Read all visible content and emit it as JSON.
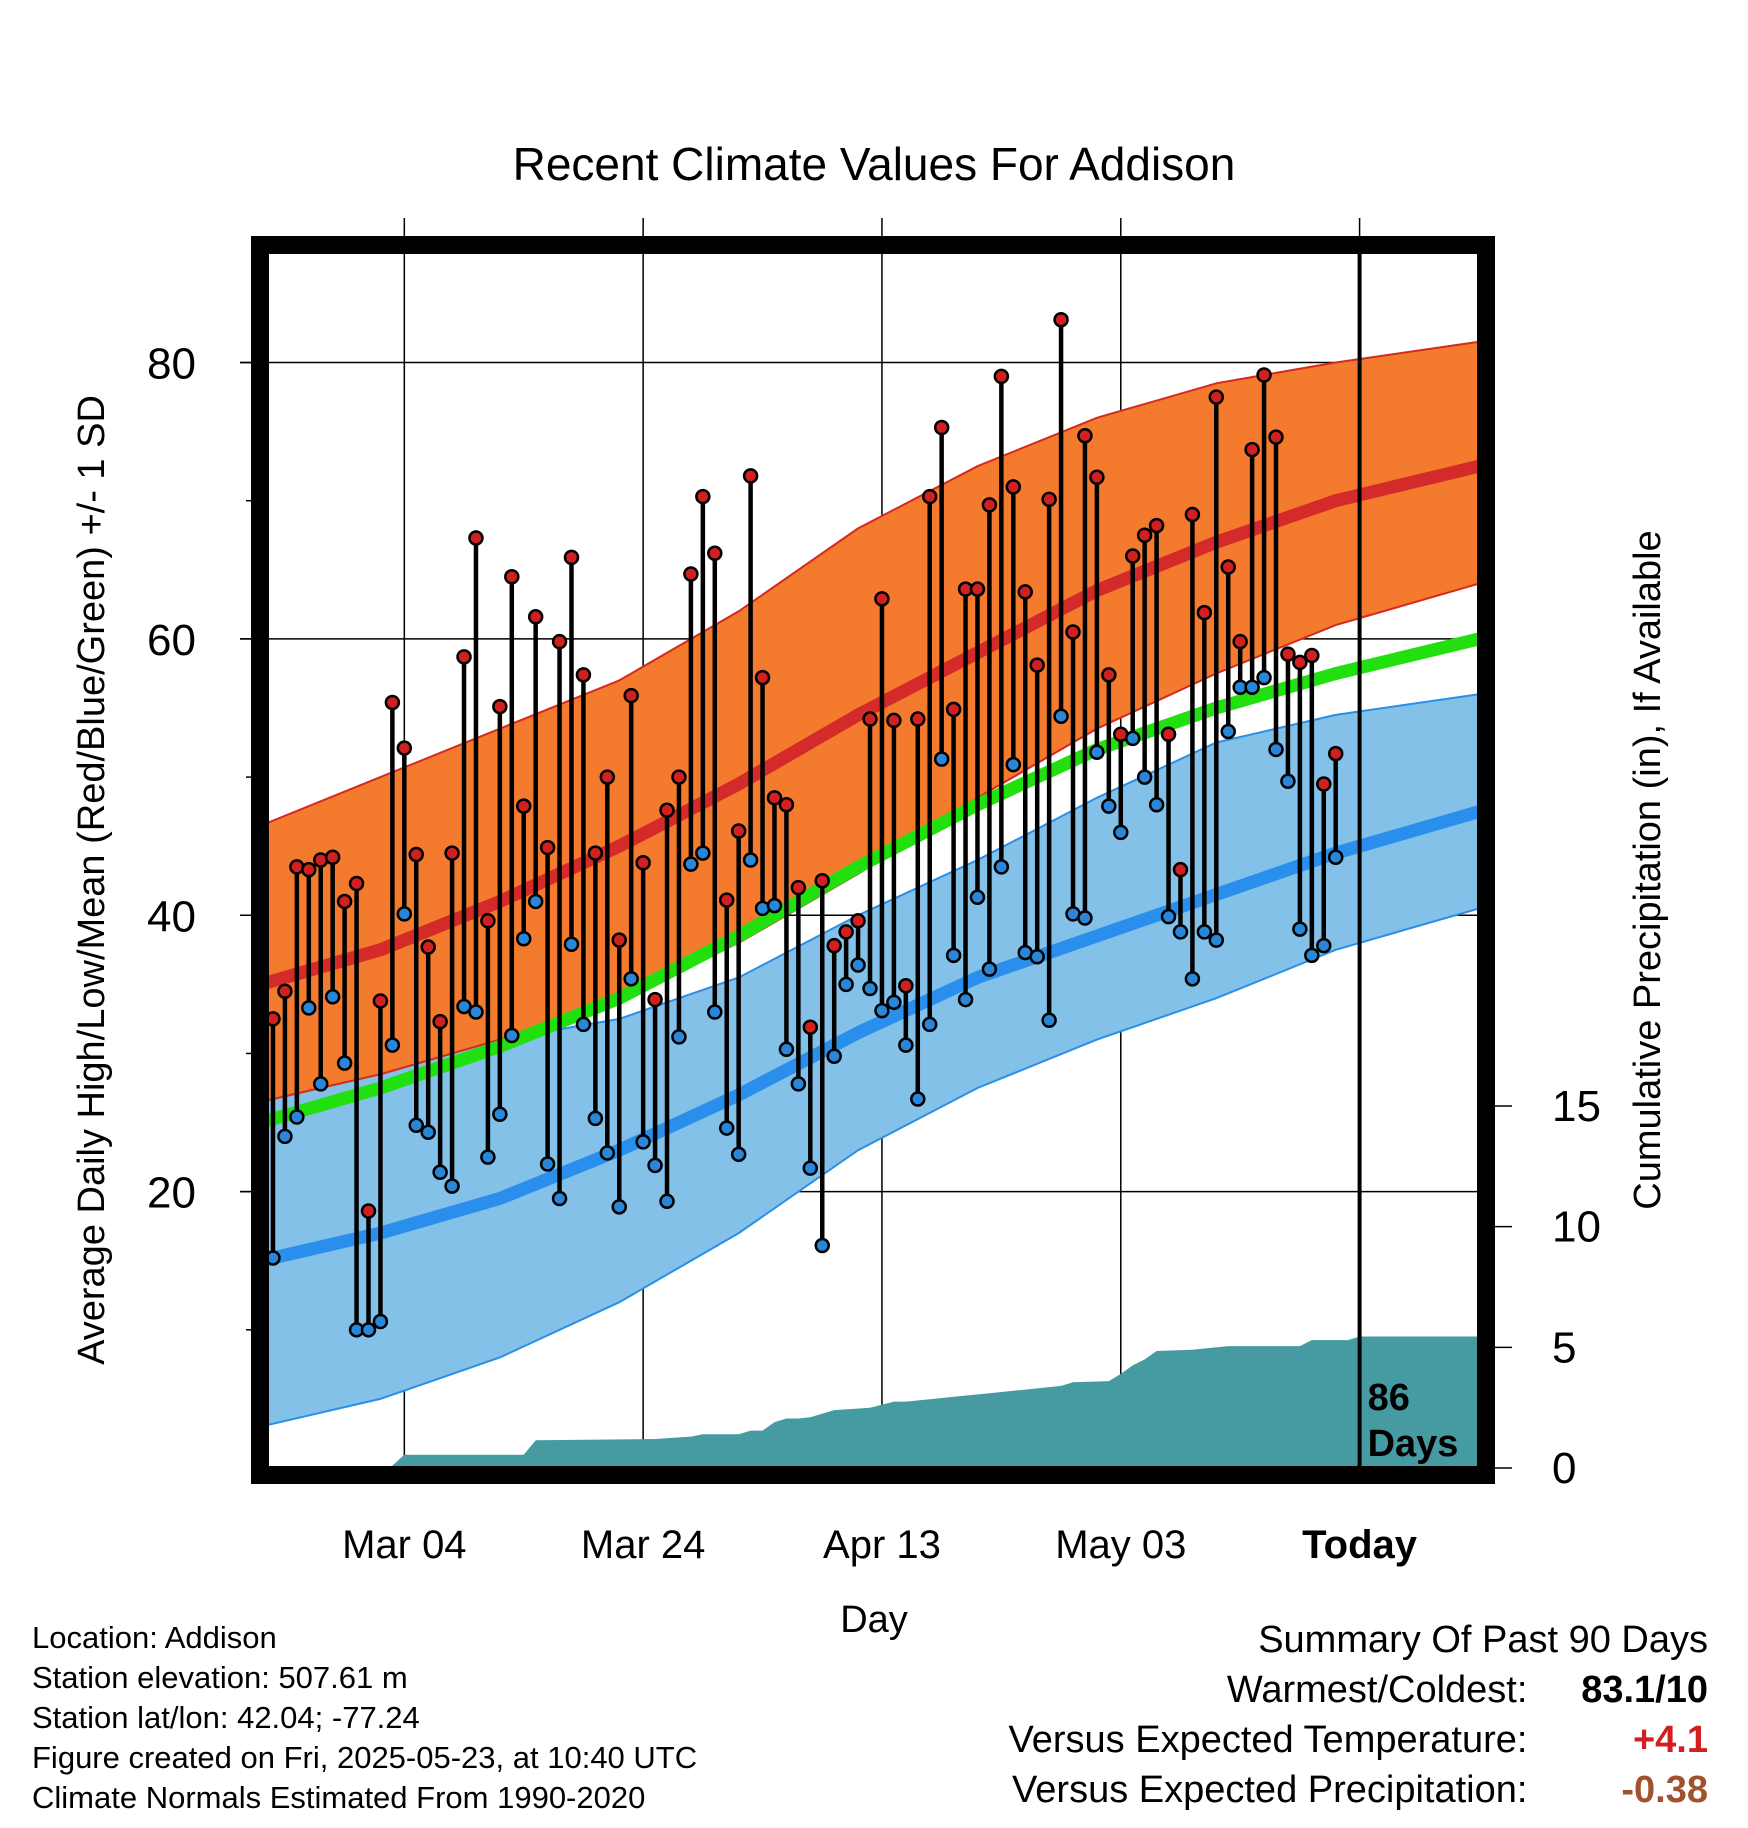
{
  "chart_data": {
    "type": "line",
    "title": "Recent Climate Values For Addison",
    "xlabel": "Day",
    "ylabel": "Average Daily High/Low/Mean (Red/Blue/Green) +/- 1 SD",
    "y2label": "Cumulative Precipitation (in), If Available",
    "x_ticks": [
      {
        "day": 12,
        "label": "Mar 04"
      },
      {
        "day": 32,
        "label": "Mar 24"
      },
      {
        "day": 52,
        "label": "Apr 13"
      },
      {
        "day": 72,
        "label": "May 03"
      },
      {
        "day": 92,
        "label": "Today"
      }
    ],
    "x_range": [
      0.5,
      102
    ],
    "ylim": [
      0,
      88
    ],
    "y_ticks": [
      20,
      40,
      60,
      80
    ],
    "y2lim": [
      0,
      15
    ],
    "y2_ticks": [
      0,
      5,
      10,
      15
    ],
    "grid": true,
    "today_annotation": "86\nDays",
    "normals": {
      "days": [
        0,
        10,
        20,
        30,
        40,
        50,
        60,
        70,
        80,
        90,
        102
      ],
      "high_mean": [
        35,
        37.5,
        41,
        45,
        49.5,
        54.5,
        59,
        63.5,
        67,
        70,
        72.5
      ],
      "high_upper": [
        46.5,
        50,
        53.5,
        57,
        62,
        68,
        72.5,
        76,
        78.5,
        80,
        81.5
      ],
      "high_lower": [
        26.5,
        28.5,
        31,
        34,
        38,
        43,
        48.5,
        53.5,
        57.5,
        61,
        64
      ],
      "mean": [
        25,
        27.5,
        30.5,
        34,
        38.5,
        43.5,
        48,
        52,
        55,
        57.5,
        60
      ],
      "low_mean": [
        15,
        17,
        19.5,
        23,
        27,
        31.5,
        35.5,
        38.5,
        41.5,
        44.5,
        47.5
      ],
      "low_upper": [
        27,
        28.5,
        31,
        32.5,
        35.5,
        40,
        44,
        48.5,
        52.5,
        54.5,
        56
      ],
      "low_lower": [
        3,
        5,
        8,
        12,
        17,
        23,
        27.5,
        31,
        34,
        37.5,
        40.5
      ]
    },
    "series": [
      {
        "name": "High",
        "color": "#d02020",
        "values": [
          32.5,
          34.5,
          43.5,
          43.3,
          44,
          44.2,
          41,
          42.3,
          18.6,
          33.8,
          55.4,
          52.1,
          44.4,
          37.7,
          32.3,
          44.5,
          58.7,
          67.3,
          39.6,
          55.1,
          64.5,
          47.9,
          61.6,
          44.9,
          59.8,
          65.9,
          57.4,
          44.5,
          50,
          38.2,
          55.9,
          43.8,
          33.9,
          47.6,
          50,
          64.7,
          70.3,
          66.2,
          41.1,
          46.1,
          71.8,
          57.2,
          48.5,
          48,
          42,
          31.9,
          42.5,
          37.8,
          38.8,
          39.6,
          54.2,
          62.9,
          54.1,
          34.9,
          54.2,
          70.3,
          75.3,
          54.9,
          63.6,
          63.6,
          69.7,
          79,
          71,
          63.4,
          58.1,
          70.1,
          83.1,
          60.5,
          74.7,
          71.7,
          57.4,
          53.1,
          66,
          67.5,
          68.2,
          53.1,
          43.3,
          69,
          61.9,
          77.5,
          65.2,
          59.8,
          73.7,
          79.1,
          74.6,
          58.9,
          58.3,
          58.8,
          49.5,
          51.7
        ]
      },
      {
        "name": "Low",
        "color": "#2a86d8",
        "values": [
          15.2,
          24,
          25.4,
          33.3,
          27.8,
          34.1,
          29.3,
          10,
          10,
          10.6,
          30.6,
          40.1,
          24.8,
          24.3,
          21.4,
          20.4,
          33.4,
          33,
          22.5,
          25.6,
          31.3,
          38.3,
          41,
          22,
          19.5,
          37.9,
          32.1,
          25.3,
          22.8,
          18.9,
          35.4,
          23.6,
          21.9,
          19.3,
          31.2,
          43.7,
          44.5,
          33,
          24.6,
          22.7,
          44,
          40.5,
          40.7,
          30.3,
          27.8,
          21.7,
          16.1,
          29.8,
          35,
          36.4,
          34.7,
          33.1,
          33.7,
          30.6,
          26.7,
          32.1,
          51.3,
          37.1,
          33.9,
          41.3,
          36.1,
          43.5,
          50.9,
          37.3,
          37,
          32.4,
          54.4,
          40.1,
          39.8,
          51.8,
          47.9,
          46,
          52.8,
          50,
          48,
          39.9,
          38.8,
          35.4,
          38.8,
          38.2,
          53.3,
          56.5,
          56.5,
          57.2,
          52,
          49.7,
          39,
          37.1,
          37.8,
          44.2
        ]
      }
    ],
    "precip_cumulative": {
      "days": [
        0,
        10,
        11,
        12,
        13,
        22,
        23,
        33,
        36,
        37,
        40,
        41,
        42,
        43,
        44,
        45,
        46,
        48,
        51,
        53,
        54,
        56,
        58,
        61,
        64,
        67,
        68,
        71,
        72,
        73,
        74,
        75,
        78,
        79,
        81,
        82,
        86,
        87,
        88,
        91,
        92,
        95,
        102
      ],
      "values": [
        0,
        0,
        0.1,
        0.55,
        0.55,
        0.55,
        1.15,
        1.2,
        1.3,
        1.4,
        1.4,
        1.55,
        1.55,
        1.9,
        2.05,
        2.05,
        2.1,
        2.4,
        2.5,
        2.75,
        2.75,
        2.85,
        2.95,
        3.1,
        3.25,
        3.4,
        3.55,
        3.6,
        3.9,
        4.25,
        4.5,
        4.85,
        4.9,
        4.95,
        5.05,
        5.05,
        5.05,
        5.05,
        5.3,
        5.3,
        5.45,
        5.45,
        5.45
      ]
    },
    "colors": {
      "high_band": "#f47a2e",
      "high_band_edge": "#d42a1f",
      "high_mean_line": "#d42a2a",
      "mean_line": "#22e010",
      "low_band": "#84c1e8",
      "low_band_edge": "#2a8fe6",
      "low_mean_line": "#2a8fec",
      "precip_fill": "#469ba3"
    }
  },
  "footer": {
    "location": "Location: Addison",
    "elevation": "Station elevation: 507.61 m",
    "latlon": "Station lat/lon: 42.04; -77.24",
    "created": "Figure created on Fri, 2025-05-23, at 10:40 UTC",
    "normals": "Climate Normals Estimated From 1990-2020"
  },
  "summary": {
    "title": "Summary Of Past 90 Days",
    "warmest_coldest_label": "Warmest/Coldest:",
    "warmest_coldest_value": "83.1/10",
    "temp_label": "Versus Expected Temperature:",
    "temp_value": "+4.1",
    "temp_color": "#d02020",
    "precip_label": "Versus Expected Precipitation:",
    "precip_value": "-0.38",
    "precip_color": "#a0522d"
  }
}
